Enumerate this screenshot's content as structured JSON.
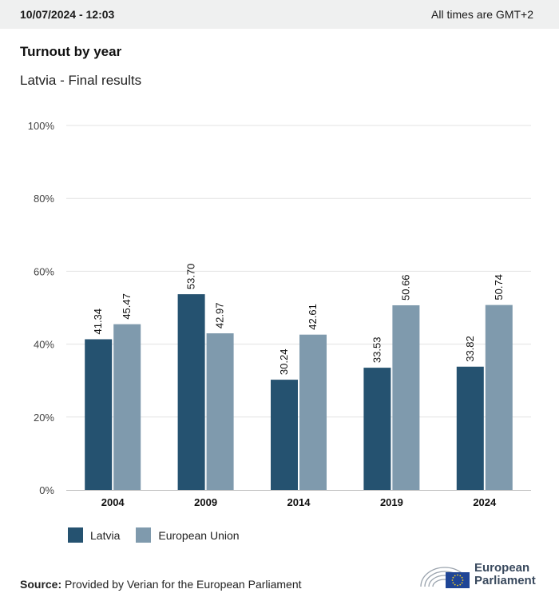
{
  "header": {
    "datetime": "10/07/2024 - 12:03",
    "timezone": "All times are GMT+2"
  },
  "title": "Turnout by year",
  "subtitle": "Latvia - Final results",
  "colors": {
    "latvia": "#255270",
    "eu": "#7f9aad",
    "grid": "#e3e3e3",
    "axis": "#bdbdbd"
  },
  "chart_data": {
    "type": "bar",
    "categories": [
      "2004",
      "2009",
      "2014",
      "2019",
      "2024"
    ],
    "series": [
      {
        "name": "Latvia",
        "values": [
          41.34,
          53.7,
          30.24,
          33.53,
          33.82
        ],
        "labels": [
          "41.34",
          "53.70",
          "30.24",
          "33.53",
          "33.82"
        ]
      },
      {
        "name": "European Union",
        "values": [
          45.47,
          42.97,
          42.61,
          50.66,
          50.74
        ],
        "labels": [
          "45.47",
          "42.97",
          "42.61",
          "50.66",
          "50.74"
        ]
      }
    ],
    "yticks": [
      "0%",
      "20%",
      "40%",
      "60%",
      "80%",
      "100%"
    ],
    "ylim": [
      0,
      100
    ],
    "grid": true,
    "legend": "bottom-left"
  },
  "legend": {
    "latvia": "Latvia",
    "eu": "European Union"
  },
  "source": {
    "label": "Source:",
    "text": " Provided by Verian for the European Parliament"
  },
  "logo": {
    "line1": "European",
    "line2": "Parliament",
    "icon": "european-parliament-logo"
  }
}
